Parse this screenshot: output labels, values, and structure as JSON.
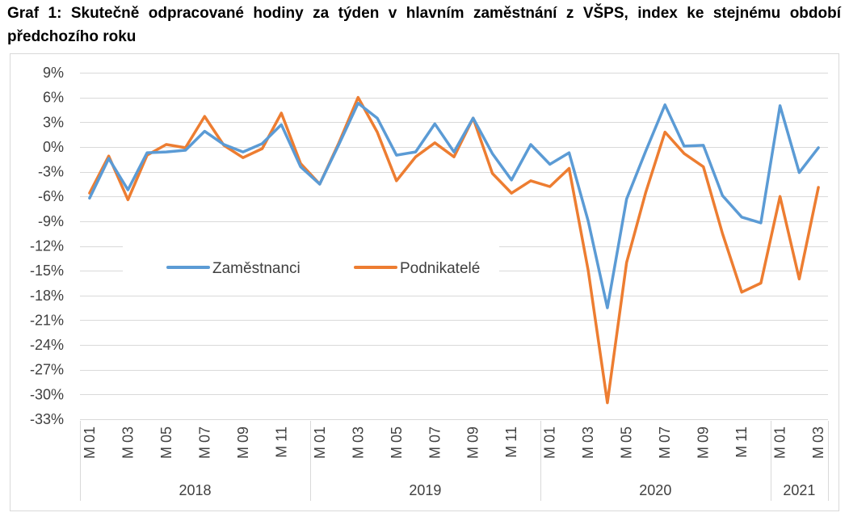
{
  "title": "Graf 1: Skutečně odpracované hodiny za týden v hlavním zaměstnání z VŠPS, index ke stejnému období předchozího roku",
  "chart_data": {
    "type": "line",
    "title": "Graf 1: Skutečně odpracované hodiny za týden v hlavním zaměstnání z VŠPS, index ke stejnému období předchozího roku",
    "ylim": [
      -33,
      9
    ],
    "y_ticks": [
      "9%",
      "6%",
      "3%",
      "0%",
      "-3%",
      "-6%",
      "-9%",
      "-12%",
      "-15%",
      "-18%",
      "-21%",
      "-24%",
      "-27%",
      "-30%",
      "-33%"
    ],
    "y_tick_values": [
      9,
      6,
      3,
      0,
      -3,
      -6,
      -9,
      -12,
      -15,
      -18,
      -21,
      -24,
      -27,
      -30,
      -33
    ],
    "grid": true,
    "legend_placement": "center-left",
    "categories": [
      "M 01",
      "M 02",
      "M 03",
      "M 04",
      "M 05",
      "M 06",
      "M 07",
      "M 08",
      "M 09",
      "M 10",
      "M 11",
      "M 12",
      "M 01",
      "M 02",
      "M 03",
      "M 04",
      "M 05",
      "M 06",
      "M 07",
      "M 08",
      "M 09",
      "M 10",
      "M 11",
      "M 12",
      "M 01",
      "M 02",
      "M 03",
      "M 04",
      "M 05",
      "M 06",
      "M 07",
      "M 08",
      "M 09",
      "M 10",
      "M 11",
      "M 12",
      "M 01",
      "M 02",
      "M 03"
    ],
    "x_tick_labels": [
      "M 01",
      "M 03",
      "M 05",
      "M 07",
      "M 09",
      "M 11",
      "M 01",
      "M 03",
      "M 05",
      "M 07",
      "M 09",
      "M 11",
      "M 01",
      "M 03",
      "M 05",
      "M 07",
      "M 09",
      "M 11",
      "M 01",
      "M 03"
    ],
    "groups": [
      {
        "label": "2018",
        "count": 12
      },
      {
        "label": "2019",
        "count": 12
      },
      {
        "label": "2020",
        "count": 12
      },
      {
        "label": "2021",
        "count": 3
      }
    ],
    "series": [
      {
        "name": "Zaměstnanci",
        "color": "#5b9bd5",
        "values": [
          -6.2,
          -1.4,
          -5.2,
          -0.7,
          -0.6,
          -0.4,
          1.9,
          0.3,
          -0.6,
          0.4,
          2.7,
          -2.4,
          -4.5,
          0.3,
          5.3,
          3.5,
          -1.0,
          -0.6,
          2.8,
          -0.6,
          3.5,
          -0.8,
          -4.0,
          0.3,
          -2.1,
          -0.7,
          -9.0,
          -19.5,
          -6.3,
          -0.5,
          5.1,
          0.1,
          0.2,
          -5.9,
          -8.5,
          -9.2,
          5.0,
          -3.1,
          -0.1
        ]
      },
      {
        "name": "Podnikatelé",
        "color": "#ed7d31",
        "values": [
          -5.6,
          -1.1,
          -6.4,
          -1.0,
          0.3,
          -0.1,
          3.7,
          0.2,
          -1.3,
          -0.2,
          4.1,
          -2.0,
          -4.5,
          0.5,
          6.0,
          1.8,
          -4.1,
          -1.2,
          0.5,
          -1.2,
          3.5,
          -3.2,
          -5.6,
          -4.1,
          -4.8,
          -2.6,
          -15.0,
          -31.0,
          -14.0,
          -5.5,
          1.8,
          -0.8,
          -2.4,
          -10.5,
          -17.6,
          -16.5,
          -6.0,
          -16.0,
          -4.9
        ]
      }
    ]
  }
}
